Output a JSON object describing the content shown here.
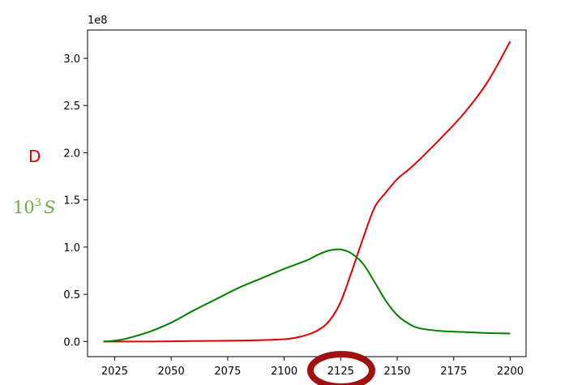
{
  "chart_data": {
    "type": "line",
    "title": "",
    "xlabel": "",
    "ylabel": "",
    "y_offset_text": "1e8",
    "xlim": [
      2013,
      2207
    ],
    "ylim": [
      -0.16,
      3.3
    ],
    "x_ticks": [
      2025,
      2050,
      2075,
      2100,
      2125,
      2150,
      2175,
      2200
    ],
    "y_ticks": [
      0.0,
      0.5,
      1.0,
      1.5,
      2.0,
      2.5,
      3.0
    ],
    "y_tick_labels": [
      "0.0",
      "0.5",
      "1.0",
      "1.5",
      "2.0",
      "2.5",
      "3.0"
    ],
    "grid": false,
    "annotations": {
      "d_label": "D",
      "s_label_base": "10",
      "s_label_exp": "3",
      "s_label_var": "S",
      "highlighted_tick": "2125"
    },
    "series": [
      {
        "color": "#e00000",
        "x": [
          2020,
          2040,
          2060,
          2080,
          2090,
          2100,
          2105,
          2110,
          2115,
          2120,
          2125,
          2130,
          2135,
          2140,
          2145,
          2150,
          2155,
          2160,
          2170,
          2180,
          2190,
          2200
        ],
        "values": [
          0.0,
          0.0,
          0.005,
          0.01,
          0.015,
          0.025,
          0.04,
          0.07,
          0.12,
          0.22,
          0.42,
          0.75,
          1.1,
          1.42,
          1.58,
          1.72,
          1.82,
          1.93,
          2.17,
          2.43,
          2.75,
          3.18
        ]
      },
      {
        "color": "#008000",
        "x": [
          2020,
          2025,
          2030,
          2040,
          2050,
          2060,
          2070,
          2080,
          2090,
          2100,
          2110,
          2115,
          2120,
          2125,
          2130,
          2135,
          2140,
          2145,
          2150,
          2155,
          2160,
          2170,
          2180,
          2190,
          2200
        ],
        "values": [
          0.0,
          0.01,
          0.03,
          0.1,
          0.2,
          0.33,
          0.45,
          0.57,
          0.67,
          0.77,
          0.86,
          0.92,
          0.965,
          0.975,
          0.93,
          0.82,
          0.63,
          0.43,
          0.28,
          0.19,
          0.14,
          0.11,
          0.1,
          0.09,
          0.085
        ]
      }
    ]
  }
}
